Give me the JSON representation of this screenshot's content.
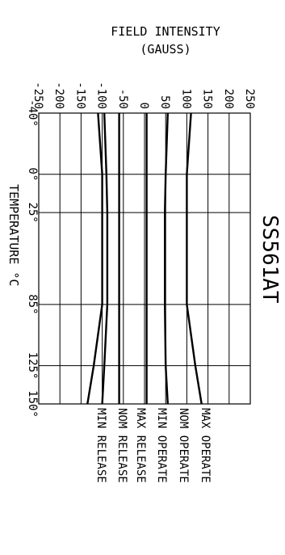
{
  "chart_data": {
    "type": "line",
    "title": "SS561AT",
    "field_axis": {
      "label_line1": "FIELD INTENSITY",
      "label_line2": "(GAUSS)",
      "ticks": [
        -250,
        -200,
        -150,
        -100,
        -50,
        0,
        50,
        100,
        150,
        200,
        250
      ],
      "range": [
        -250,
        250
      ]
    },
    "temperature_axis": {
      "label": "TEMPERATURE °C",
      "ticks": [
        -40,
        0,
        25,
        85,
        125,
        150
      ],
      "tick_labels": [
        "-40°",
        "0°",
        "25°",
        "85°",
        "125°",
        "150°"
      ],
      "range": [
        -40,
        150
      ]
    },
    "x": [
      -40,
      0,
      25,
      85,
      125,
      150
    ],
    "series": [
      {
        "name": "MIN RELEASE",
        "values": [
          -110,
          -100,
          -100,
          -100,
          -120,
          -135
        ]
      },
      {
        "name": "NOM RELEASE",
        "values": [
          -95,
          -90,
          -88,
          -88,
          -95,
          -100
        ]
      },
      {
        "name": "MAX RELEASE",
        "values": [
          -60,
          -60,
          -60,
          -60,
          -60,
          -60
        ]
      },
      {
        "name": "MIN OPERATE",
        "values": [
          5,
          5,
          5,
          5,
          5,
          5
        ]
      },
      {
        "name": "NOM OPERATE",
        "values": [
          55,
          50,
          48,
          48,
          50,
          55
        ]
      },
      {
        "name": "MAX OPERATE",
        "values": [
          110,
          100,
          100,
          100,
          120,
          135
        ]
      }
    ],
    "grid": true
  }
}
